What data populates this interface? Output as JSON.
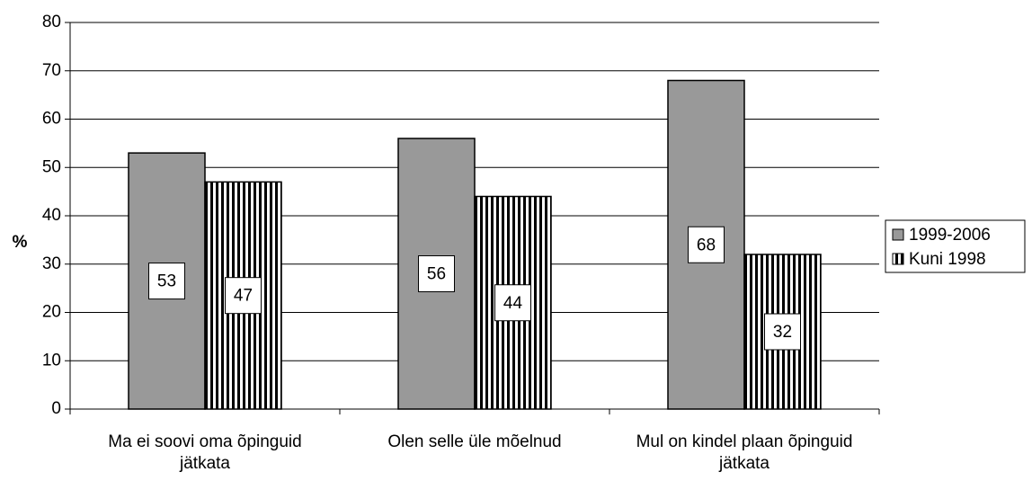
{
  "chart_data": {
    "type": "bar",
    "y_label": "%",
    "categories": [
      "Ma ei soovi oma õpinguid jätkata",
      "Olen selle üle mõelnud",
      "Mul on kindel plaan õpinguid jätkata"
    ],
    "series": [
      {
        "name": "1999-2006",
        "color": "#999999",
        "values": [
          53,
          56,
          68
        ]
      },
      {
        "name": "Kuni 1998",
        "color": "#000000",
        "pattern": "vertical-stripes",
        "values": [
          47,
          44,
          32
        ]
      }
    ],
    "ylim": [
      0,
      80
    ],
    "yticks": [
      0,
      10,
      20,
      30,
      40,
      50,
      60,
      70,
      80
    ],
    "grid": true,
    "legend": "right",
    "data_labels": true
  }
}
